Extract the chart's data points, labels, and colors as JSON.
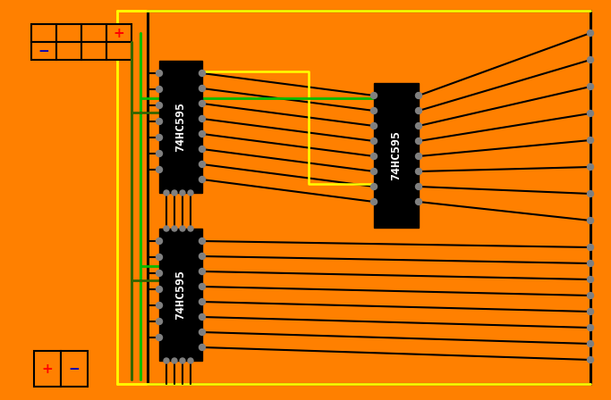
{
  "bg": "#FF8000",
  "black": "#000000",
  "white": "#FFFFFF",
  "yellow": "#FFFF00",
  "green": "#00BB00",
  "dkgreen": "#336600",
  "gray": "#808080",
  "red": "#FF0000",
  "blue": "#0000BB",
  "figsize": [
    6.83,
    4.48
  ],
  "dpi": 100,
  "ic1": [
    178,
    68,
    48,
    148
  ],
  "ic2": [
    178,
    256,
    48,
    148
  ],
  "ic3": [
    418,
    93,
    50,
    162
  ],
  "border": [
    165,
    12,
    660,
    430
  ],
  "conn_top": [
    35,
    27,
    4,
    2,
    28,
    20
  ],
  "conn_bot": [
    38,
    393,
    2,
    1,
    30,
    40
  ]
}
